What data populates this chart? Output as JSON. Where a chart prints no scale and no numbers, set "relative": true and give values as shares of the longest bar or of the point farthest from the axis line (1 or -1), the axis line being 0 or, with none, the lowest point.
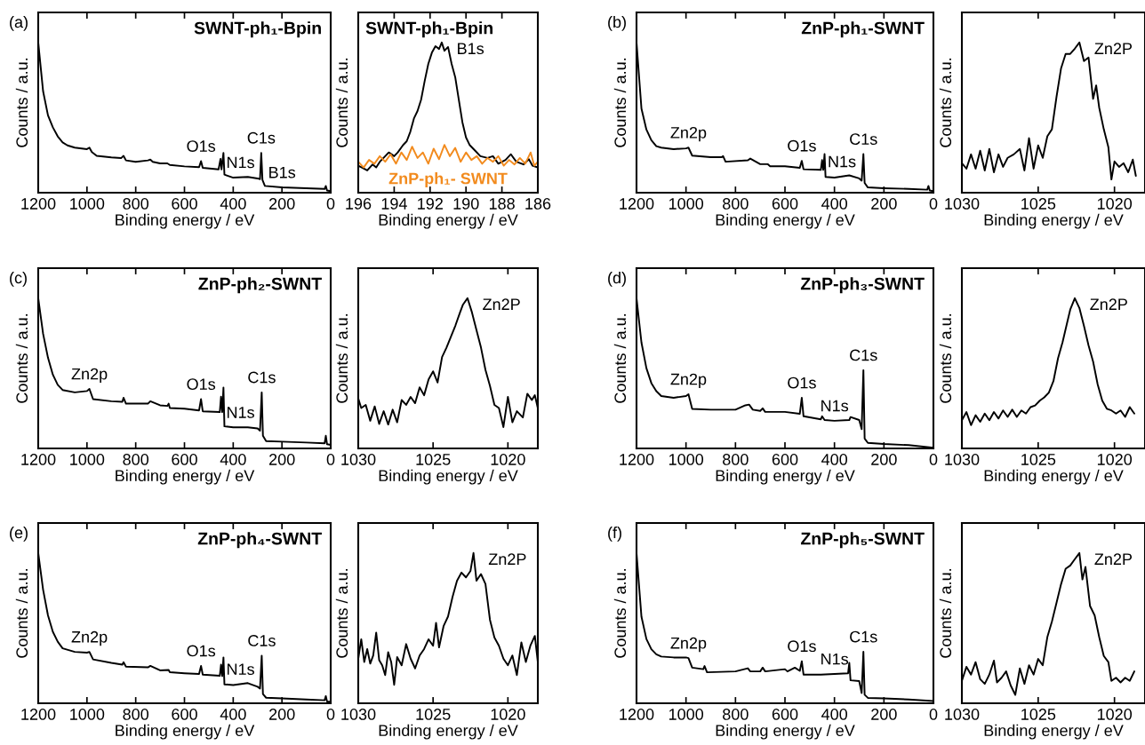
{
  "chart_data": [
    {
      "type": "line",
      "title": "SWNT-ph₁-Bpin",
      "xlabel": "Binding energy / eV",
      "ylabel": "Counts / a.u.",
      "relative": true,
      "tick_labels": "x",
      "xlim": [
        1200,
        0
      ],
      "xticks": [
        1200,
        1000,
        800,
        600,
        400,
        200,
        0
      ],
      "series": [
        {
          "color": "#000000",
          "x": [
            1200,
            1180,
            1160,
            1140,
            1120,
            1100,
            1080,
            1050,
            1000,
            990,
            980,
            960,
            900,
            860,
            850,
            840,
            800,
            750,
            740,
            730,
            700,
            670,
            660,
            600,
            540,
            532,
            525,
            460,
            452,
            448,
            440,
            436,
            400,
            340,
            300,
            290,
            285,
            280,
            270,
            200,
            100,
            25,
            20,
            15,
            0
          ],
          "values": [
            1,
            0.675,
            0.515,
            0.435,
            0.375,
            0.335,
            0.315,
            0.3,
            0.29,
            0.3,
            0.27,
            0.245,
            0.235,
            0.23,
            0.245,
            0.215,
            0.205,
            0.215,
            0.22,
            0.205,
            0.195,
            0.195,
            0.185,
            0.175,
            0.17,
            0.21,
            0.165,
            0.155,
            0.225,
            0.155,
            0.265,
            0.12,
            0.1,
            0.105,
            0.095,
            0.09,
            0.265,
            0.085,
            0.045,
            0.035,
            0.03,
            0.025,
            0.045,
            0.015,
            0.01
          ]
        }
      ],
      "annotations": [
        "(a)",
        {
          "text": "O1s",
          "x": 532,
          "y": 0.21
        },
        {
          "text": "N1s",
          "x": 370,
          "y": 0.102
        },
        {
          "text": "C1s",
          "x": 285,
          "y": 0.265
        },
        {
          "text": "B1s",
          "x": 200,
          "y": 0.035
        }
      ]
    },
    {
      "type": "line",
      "title": "SWNT-ph₁-Bpin",
      "xlabel": "Binding energy / eV",
      "ylabel": "Counts / a.u.",
      "relative": true,
      "tick_labels": "x",
      "xlim": [
        196,
        186
      ],
      "xticks": [
        196,
        194,
        192,
        190,
        188,
        186
      ],
      "series": [
        {
          "color": "#000000",
          "x": [
            196,
            195.8,
            195.5,
            195.2,
            195,
            194.8,
            194.5,
            194.3,
            194,
            193.8,
            193.5,
            193.3,
            193.1,
            192.9,
            192.7,
            192.5,
            192.3,
            192.1,
            191.9,
            191.7,
            191.5,
            191.35,
            191.2,
            191,
            190.8,
            190.6,
            190.4,
            190.2,
            190,
            189.8,
            189.5,
            189.2,
            188.8,
            188.5,
            188.2,
            187.8,
            187.5,
            187.2,
            186.8,
            186.5,
            186.3,
            186
          ],
          "values": [
            0.18,
            0.168,
            0.148,
            0.188,
            0.168,
            0.206,
            0.243,
            0.268,
            0.243,
            0.268,
            0.318,
            0.343,
            0.406,
            0.494,
            0.544,
            0.619,
            0.744,
            0.857,
            0.932,
            0.975,
            0.957,
            1,
            0.945,
            0.97,
            0.857,
            0.769,
            0.619,
            0.469,
            0.368,
            0.318,
            0.281,
            0.243,
            0.231,
            0.243,
            0.193,
            0.218,
            0.256,
            0.206,
            0.188,
            0.223,
            0.18,
            0.168
          ]
        },
        {
          "name": "ZnP-ph₁- SWNT",
          "color": "#f28b1e",
          "x": [
            196,
            195.7,
            195.4,
            195.1,
            194.8,
            194.5,
            194.2,
            193.9,
            193.6,
            193.3,
            193,
            192.7,
            192.4,
            192.1,
            191.8,
            191.5,
            191.2,
            190.9,
            190.6,
            190.3,
            190,
            189.7,
            189.4,
            189.1,
            188.8,
            188.5,
            188.2,
            187.9,
            187.6,
            187.3,
            187,
            186.7,
            186.4,
            186.2,
            186
          ],
          "values": [
            0.206,
            0.168,
            0.218,
            0.193,
            0.243,
            0.206,
            0.256,
            0.193,
            0.268,
            0.218,
            0.306,
            0.231,
            0.268,
            0.193,
            0.293,
            0.223,
            0.318,
            0.243,
            0.298,
            0.206,
            0.268,
            0.218,
            0.243,
            0.193,
            0.231,
            0.206,
            0.243,
            0.18,
            0.218,
            0.188,
            0.231,
            0.193,
            0.268,
            0.18,
            0.206
          ]
        }
      ],
      "annotations": [
        {
          "text": "B1s",
          "x": 191.35,
          "y": 1
        }
      ]
    },
    {
      "type": "line",
      "title": "ZnP-ph₁-SWNT",
      "xlabel": "Binding energy / eV",
      "ylabel": "Counts / a.u.",
      "relative": true,
      "tick_labels": "x",
      "xlim": [
        1200,
        0
      ],
      "xticks": [
        1200,
        1000,
        800,
        600,
        400,
        200,
        0
      ],
      "series": [
        {
          "color": "#000000",
          "x": [
            1200,
            1180,
            1160,
            1140,
            1120,
            1100,
            1050,
            1000,
            990,
            975,
            900,
            855,
            850,
            840,
            750,
            740,
            700,
            670,
            660,
            600,
            540,
            532,
            525,
            455,
            450,
            445,
            440,
            436,
            400,
            340,
            300,
            290,
            283,
            278,
            265,
            200,
            100,
            25,
            20,
            15,
            0
          ],
          "values": [
            1,
            0.56,
            0.42,
            0.35,
            0.31,
            0.3,
            0.29,
            0.295,
            0.3,
            0.247,
            0.237,
            0.237,
            0.243,
            0.206,
            0.216,
            0.227,
            0.19,
            0.19,
            0.176,
            0.176,
            0.166,
            0.212,
            0.156,
            0.152,
            0.217,
            0.152,
            0.257,
            0.105,
            0.1,
            0.115,
            0.095,
            0.08,
            0.257,
            0.065,
            0.035,
            0.03,
            0.025,
            0.02,
            0.045,
            0.015,
            0.01
          ]
        }
      ],
      "annotations": [
        "(b)",
        {
          "text": "Zn2p",
          "x": 990,
          "y": 0.3
        },
        {
          "text": "O1s",
          "x": 532,
          "y": 0.212
        },
        {
          "text": "N1s",
          "x": 370,
          "y": 0.107
        },
        {
          "text": "C1s",
          "x": 283,
          "y": 0.257
        }
      ]
    },
    {
      "type": "line",
      "xlabel": "Binding energy / eV",
      "ylabel": "Counts / a.u.",
      "relative": true,
      "tick_labels": "x",
      "xlim": [
        1030,
        1018
      ],
      "xticks": [
        1030,
        1025,
        1020
      ],
      "series": [
        {
          "color": "#000000",
          "x": [
            1030,
            1029.7,
            1029.4,
            1029.1,
            1028.8,
            1028.5,
            1028.2,
            1027.9,
            1027.6,
            1027.3,
            1027,
            1026.6,
            1026.2,
            1025.9,
            1025.6,
            1025.3,
            1025,
            1024.7,
            1024.4,
            1024.1,
            1023.8,
            1023.5,
            1023.2,
            1022.9,
            1022.6,
            1022.3,
            1022,
            1021.7,
            1021.4,
            1021.2,
            1021,
            1020.7,
            1020.4,
            1020.2,
            1020,
            1019.7,
            1019.4,
            1019.1,
            1018.8,
            1018.6
          ],
          "values": [
            0.196,
            0.16,
            0.255,
            0.16,
            0.279,
            0.148,
            0.291,
            0.136,
            0.255,
            0.172,
            0.232,
            0.255,
            0.291,
            0.148,
            0.363,
            0.16,
            0.315,
            0.232,
            0.375,
            0.422,
            0.637,
            0.828,
            0.924,
            0.924,
            0.959,
            1,
            0.876,
            0.9,
            0.625,
            0.714,
            0.566,
            0.422,
            0.303,
            0.088,
            0.208,
            0.172,
            0.196,
            0.136,
            0.22,
            0.112
          ]
        }
      ],
      "annotations": [
        {
          "text": "Zn2P",
          "x": 1022.3,
          "y": 1
        }
      ]
    },
    {
      "type": "line",
      "title": "ZnP-ph₂-SWNT",
      "xlabel": "Binding energy / eV",
      "ylabel": "Counts / a.u.",
      "relative": true,
      "tick_labels": "x",
      "xlim": [
        1200,
        0
      ],
      "xticks": [
        1200,
        1000,
        800,
        600,
        400,
        200,
        0
      ],
      "series": [
        {
          "color": "#000000",
          "x": [
            1200,
            1180,
            1160,
            1140,
            1120,
            1100,
            1050,
            1000,
            990,
            975,
            900,
            855,
            850,
            840,
            750,
            740,
            700,
            670,
            665,
            660,
            600,
            540,
            532,
            525,
            455,
            450,
            445,
            440,
            436,
            400,
            340,
            300,
            290,
            283,
            278,
            265,
            200,
            100,
            25,
            20,
            15,
            0
          ],
          "values": [
            1,
            0.763,
            0.604,
            0.491,
            0.423,
            0.389,
            0.373,
            0.382,
            0.396,
            0.328,
            0.314,
            0.31,
            0.337,
            0.298,
            0.298,
            0.314,
            0.287,
            0.283,
            0.298,
            0.269,
            0.265,
            0.253,
            0.328,
            0.247,
            0.242,
            0.344,
            0.242,
            0.405,
            0.147,
            0.14,
            0.14,
            0.133,
            0.118,
            0.373,
            0.084,
            0.049,
            0.045,
            0.039,
            0.034,
            0.084,
            0.028,
            0.023
          ]
        }
      ],
      "annotations": [
        "(c)",
        {
          "text": "Zn2p",
          "x": 990,
          "y": 0.396
        },
        {
          "text": "O1s",
          "x": 532,
          "y": 0.328
        },
        {
          "text": "N1s",
          "x": 370,
          "y": 0.14
        },
        {
          "text": "C1s",
          "x": 283,
          "y": 0.373
        }
      ]
    },
    {
      "type": "line",
      "xlabel": "Binding energy / eV",
      "ylabel": "Counts / a.u.",
      "relative": true,
      "tick_labels": "x",
      "xlim": [
        1030,
        1018
      ],
      "xticks": [
        1030,
        1025,
        1020
      ],
      "series": [
        {
          "color": "#000000",
          "x": [
            1030,
            1029.8,
            1029.5,
            1029.2,
            1028.9,
            1028.6,
            1028.3,
            1028,
            1027.7,
            1027.4,
            1027.1,
            1026.8,
            1026.5,
            1026.2,
            1025.9,
            1025.6,
            1025.3,
            1025,
            1024.7,
            1024.4,
            1024.1,
            1023.8,
            1023.5,
            1023.2,
            1023,
            1022.7,
            1022.4,
            1022.1,
            1021.8,
            1021.5,
            1021.2,
            1020.9,
            1020.6,
            1020.3,
            1020,
            1019.7,
            1019.4,
            1019,
            1018.7,
            1018.4,
            1018.2,
            1018
          ],
          "values": [
            0.333,
            0.269,
            0.29,
            0.184,
            0.28,
            0.163,
            0.248,
            0.159,
            0.258,
            0.174,
            0.322,
            0.29,
            0.343,
            0.301,
            0.407,
            0.354,
            0.46,
            0.513,
            0.439,
            0.608,
            0.672,
            0.746,
            0.82,
            0.905,
            0.958,
            1,
            0.905,
            0.788,
            0.672,
            0.523,
            0.417,
            0.29,
            0.269,
            0.142,
            0.343,
            0.174,
            0.248,
            0.206,
            0.364,
            0.322,
            0.354,
            0.269
          ]
        }
      ],
      "annotations": [
        {
          "text": "Zn2P",
          "x": 1022.7,
          "y": 1
        }
      ]
    },
    {
      "type": "line",
      "title": "ZnP-ph₃-SWNT",
      "xlabel": "Binding energy / eV",
      "ylabel": "Counts / a.u.",
      "relative": true,
      "tick_labels": "x",
      "xlim": [
        1200,
        0
      ],
      "xticks": [
        1200,
        1000,
        800,
        600,
        400,
        200,
        0
      ],
      "series": [
        {
          "color": "#000000",
          "x": [
            1200,
            1180,
            1160,
            1140,
            1120,
            1100,
            1050,
            1000,
            990,
            975,
            900,
            800,
            760,
            745,
            730,
            700,
            690,
            680,
            600,
            540,
            532,
            525,
            455,
            450,
            440,
            400,
            340,
            335,
            300,
            290,
            283,
            278,
            265,
            200,
            100,
            0
          ],
          "values": [
            1,
            0.705,
            0.534,
            0.435,
            0.381,
            0.349,
            0.337,
            0.349,
            0.361,
            0.263,
            0.258,
            0.258,
            0.287,
            0.292,
            0.258,
            0.25,
            0.267,
            0.243,
            0.243,
            0.231,
            0.337,
            0.214,
            0.194,
            0.214,
            0.189,
            0.184,
            0.189,
            0.209,
            0.189,
            0.128,
            0.521,
            0.066,
            0.037,
            0.029,
            0.022,
            0.005
          ]
        }
      ],
      "annotations": [
        "(d)",
        {
          "text": "Zn2p",
          "x": 990,
          "y": 0.361
        },
        {
          "text": "O1s",
          "x": 532,
          "y": 0.337
        },
        {
          "text": "N1s",
          "x": 400,
          "y": 0.184
        },
        {
          "text": "C1s",
          "x": 283,
          "y": 0.521
        }
      ]
    },
    {
      "type": "line",
      "xlabel": "Binding energy / eV",
      "ylabel": "Counts / a.u.",
      "relative": true,
      "tick_labels": "x",
      "xlim": [
        1030,
        1018
      ],
      "xticks": [
        1030,
        1025,
        1020
      ],
      "series": [
        {
          "color": "#000000",
          "x": [
            1030,
            1029.7,
            1029.4,
            1029.1,
            1028.8,
            1028.5,
            1028.2,
            1027.9,
            1027.6,
            1027.3,
            1027,
            1026.7,
            1026.4,
            1026.1,
            1025.8,
            1025.5,
            1025.2,
            1024.9,
            1024.6,
            1024.3,
            1024,
            1023.7,
            1023.4,
            1023.1,
            1022.9,
            1022.6,
            1022.3,
            1022,
            1021.7,
            1021.4,
            1021.1,
            1020.8,
            1020.5,
            1020.2,
            1019.9,
            1019.6,
            1019.3,
            1019,
            1018.7
          ],
          "values": [
            0.188,
            0.242,
            0.155,
            0.221,
            0.177,
            0.232,
            0.188,
            0.242,
            0.199,
            0.253,
            0.21,
            0.258,
            0.21,
            0.253,
            0.232,
            0.275,
            0.286,
            0.318,
            0.34,
            0.372,
            0.448,
            0.6,
            0.708,
            0.838,
            0.924,
            1,
            0.935,
            0.816,
            0.686,
            0.578,
            0.426,
            0.318,
            0.264,
            0.253,
            0.232,
            0.253,
            0.21,
            0.275,
            0.232
          ]
        }
      ],
      "annotations": [
        {
          "text": "Zn2P",
          "x": 1022.6,
          "y": 1
        }
      ]
    },
    {
      "type": "line",
      "title": "ZnP-ph₄-SWNT",
      "xlabel": "Binding energy / eV",
      "ylabel": "Counts / a.u.",
      "relative": true,
      "tick_labels": "x",
      "xlim": [
        1200,
        0
      ],
      "xticks": [
        1200,
        1000,
        800,
        600,
        400,
        200,
        0
      ],
      "series": [
        {
          "color": "#000000",
          "x": [
            1200,
            1180,
            1160,
            1140,
            1120,
            1100,
            1050,
            1000,
            990,
            975,
            900,
            855,
            850,
            840,
            750,
            740,
            700,
            665,
            660,
            600,
            540,
            532,
            525,
            455,
            450,
            445,
            440,
            436,
            400,
            340,
            300,
            290,
            283,
            278,
            265,
            200,
            100,
            25,
            20,
            15,
            0
          ],
          "values": [
            1,
            0.756,
            0.585,
            0.476,
            0.41,
            0.366,
            0.342,
            0.337,
            0.342,
            0.292,
            0.269,
            0.257,
            0.273,
            0.244,
            0.239,
            0.249,
            0.219,
            0.222,
            0.207,
            0.2,
            0.195,
            0.249,
            0.191,
            0.183,
            0.257,
            0.181,
            0.305,
            0.126,
            0.121,
            0.134,
            0.11,
            0.098,
            0.317,
            0.061,
            0.037,
            0.032,
            0.025,
            0.02,
            0.048,
            0.012,
            0.01
          ]
        }
      ],
      "annotations": [
        "(e)",
        {
          "text": "Zn2p",
          "x": 990,
          "y": 0.342
        },
        {
          "text": "O1s",
          "x": 532,
          "y": 0.249
        },
        {
          "text": "N1s",
          "x": 370,
          "y": 0.127
        },
        {
          "text": "C1s",
          "x": 283,
          "y": 0.317
        }
      ]
    },
    {
      "type": "line",
      "xlabel": "Binding energy / eV",
      "ylabel": "Counts / a.u.",
      "relative": true,
      "tick_labels": "x",
      "xlim": [
        1030,
        1018
      ],
      "xticks": [
        1030,
        1025,
        1020
      ],
      "series": [
        {
          "color": "#000000",
          "x": [
            1030,
            1029.8,
            1029.6,
            1029.4,
            1029.2,
            1029,
            1028.8,
            1028.6,
            1028.4,
            1028.2,
            1028,
            1027.8,
            1027.6,
            1027.4,
            1027.1,
            1026.8,
            1026.5,
            1026.2,
            1025.9,
            1025.6,
            1025.3,
            1025,
            1024.8,
            1024.6,
            1024.3,
            1024,
            1023.7,
            1023.4,
            1023.1,
            1022.8,
            1022.5,
            1022.3,
            1022.1,
            1021.8,
            1021.5,
            1021.2,
            1020.9,
            1020.6,
            1020.3,
            1020,
            1019.7,
            1019.4,
            1019.1,
            1018.8,
            1018.5,
            1018.2,
            1018
          ],
          "values": [
            0.297,
            0.426,
            0.275,
            0.361,
            0.264,
            0.318,
            0.47,
            0.286,
            0.253,
            0.188,
            0.34,
            0.275,
            0.123,
            0.307,
            0.253,
            0.394,
            0.297,
            0.232,
            0.318,
            0.361,
            0.426,
            0.383,
            0.535,
            0.372,
            0.513,
            0.578,
            0.708,
            0.816,
            0.87,
            0.838,
            0.881,
            1,
            0.816,
            0.86,
            0.794,
            0.556,
            0.437,
            0.383,
            0.297,
            0.253,
            0.318,
            0.188,
            0.405,
            0.275,
            0.383,
            0.448,
            0.275
          ]
        }
      ],
      "annotations": [
        {
          "text": "Zn2P",
          "x": 1022.3,
          "y": 1
        }
      ]
    },
    {
      "type": "line",
      "title": "ZnP-ph₅-SWNT",
      "xlabel": "Binding energy / eV",
      "ylabel": "Counts / a.u.",
      "relative": true,
      "tick_labels": "x",
      "xlim": [
        1200,
        0
      ],
      "xticks": [
        1200,
        1000,
        800,
        600,
        400,
        200,
        0
      ],
      "series": [
        {
          "color": "#000000",
          "x": [
            1200,
            1180,
            1160,
            1140,
            1120,
            1100,
            1050,
            1000,
            990,
            975,
            930,
            925,
            915,
            800,
            750,
            740,
            700,
            690,
            680,
            600,
            590,
            560,
            540,
            532,
            525,
            455,
            400,
            345,
            340,
            335,
            300,
            290,
            283,
            278,
            265,
            200,
            100,
            0
          ],
          "values": [
            1,
            0.576,
            0.428,
            0.36,
            0.326,
            0.311,
            0.305,
            0.305,
            0.301,
            0.237,
            0.227,
            0.248,
            0.206,
            0.212,
            0.233,
            0.212,
            0.212,
            0.237,
            0.212,
            0.227,
            0.212,
            0.237,
            0.216,
            0.28,
            0.191,
            0.191,
            0.195,
            0.199,
            0.269,
            0.153,
            0.148,
            0.068,
            0.343,
            0.057,
            0.036,
            0.032,
            0.025,
            0.015
          ]
        }
      ],
      "annotations": [
        "(f)",
        {
          "text": "Zn2p",
          "x": 990,
          "y": 0.301
        },
        {
          "text": "O1s",
          "x": 532,
          "y": 0.28
        },
        {
          "text": "N1s",
          "x": 400,
          "y": 0.195
        },
        {
          "text": "C1s",
          "x": 283,
          "y": 0.343
        }
      ]
    },
    {
      "type": "line",
      "xlabel": "Binding energy / eV",
      "ylabel": "Counts / a.u.",
      "relative": true,
      "tick_labels": "x",
      "xlim": [
        1030,
        1018
      ],
      "xticks": [
        1030,
        1025,
        1020
      ],
      "series": [
        {
          "color": "#000000",
          "x": [
            1030,
            1029.7,
            1029.4,
            1029.1,
            1028.8,
            1028.5,
            1028.2,
            1027.9,
            1027.7,
            1027.4,
            1027.1,
            1026.8,
            1026.5,
            1026.2,
            1025.9,
            1025.6,
            1025.3,
            1025,
            1024.7,
            1024.4,
            1024.1,
            1023.8,
            1023.5,
            1023.2,
            1022.9,
            1022.6,
            1022.3,
            1022.1,
            1021.9,
            1021.6,
            1021.3,
            1021,
            1020.7,
            1020.4,
            1020.2,
            1019.9,
            1019.6,
            1019.3,
            1019,
            1018.7
          ],
          "values": [
            0.149,
            0.243,
            0.191,
            0.274,
            0.16,
            0.129,
            0.191,
            0.284,
            0.139,
            0.17,
            0.212,
            0.118,
            0.056,
            0.232,
            0.129,
            0.253,
            0.191,
            0.295,
            0.253,
            0.44,
            0.544,
            0.668,
            0.793,
            0.896,
            0.917,
            0.959,
            1,
            0.824,
            0.907,
            0.647,
            0.585,
            0.44,
            0.315,
            0.274,
            0.149,
            0.17,
            0.139,
            0.17,
            0.149,
            0.212
          ]
        }
      ],
      "annotations": [
        {
          "text": "Zn2P",
          "x": 1022.3,
          "y": 1
        }
      ]
    }
  ]
}
